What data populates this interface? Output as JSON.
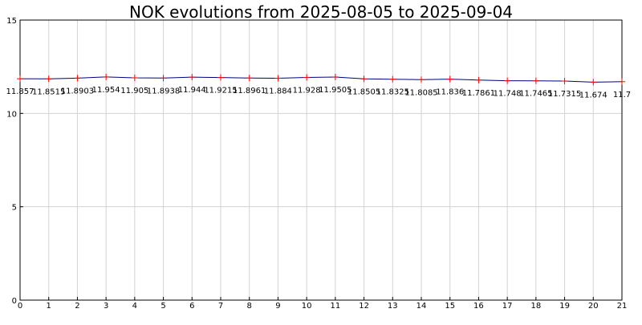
{
  "chart_data": {
    "type": "line",
    "title": "NOK evolutions from 2025-08-05 to 2025-09-04",
    "xlabel": "",
    "ylabel": "",
    "xlim": [
      0,
      21
    ],
    "ylim": [
      0,
      15
    ],
    "x_ticks": [
      "0",
      "1",
      "2",
      "3",
      "4",
      "5",
      "6",
      "7",
      "8",
      "9",
      "10",
      "11",
      "12",
      "13",
      "14",
      "15",
      "16",
      "17",
      "18",
      "19",
      "20",
      "21"
    ],
    "y_ticks": [
      "0",
      "5",
      "10",
      "15"
    ],
    "grid": true,
    "series": [
      {
        "name": "",
        "color": "#000080",
        "marker_color": "#ff0000",
        "x": [
          0,
          1,
          2,
          3,
          4,
          5,
          6,
          7,
          8,
          9,
          10,
          11,
          12,
          13,
          14,
          15,
          16,
          17,
          18,
          19,
          20,
          21
        ],
        "values": [
          11.857,
          11.8515,
          11.8903,
          11.954,
          11.905,
          11.8938,
          11.944,
          11.9215,
          11.8961,
          11.884,
          11.928,
          11.9505,
          11.8505,
          11.8325,
          11.8085,
          11.836,
          11.7861,
          11.748,
          11.7465,
          11.7315,
          11.674,
          11.7
        ],
        "labels": [
          "11.857",
          "11.8515",
          "11.8903",
          "11.954",
          "11.905",
          "11.8938",
          "11.944",
          "11.9215",
          "11.8961",
          "11.884",
          "11.928",
          "11.9505",
          "11.8505",
          "11.8325",
          "11.8085",
          "11.836",
          "11.7861",
          "11.748",
          "11.7465",
          "11.7315",
          "11.674",
          "11.7"
        ]
      }
    ]
  },
  "colors": {
    "background": "#ffffff",
    "plot_background": "#ffffff",
    "frame": "#000000",
    "grid": "#d3d3d3",
    "line": "#000080",
    "marker": "#ff0000",
    "text": "#000000"
  }
}
